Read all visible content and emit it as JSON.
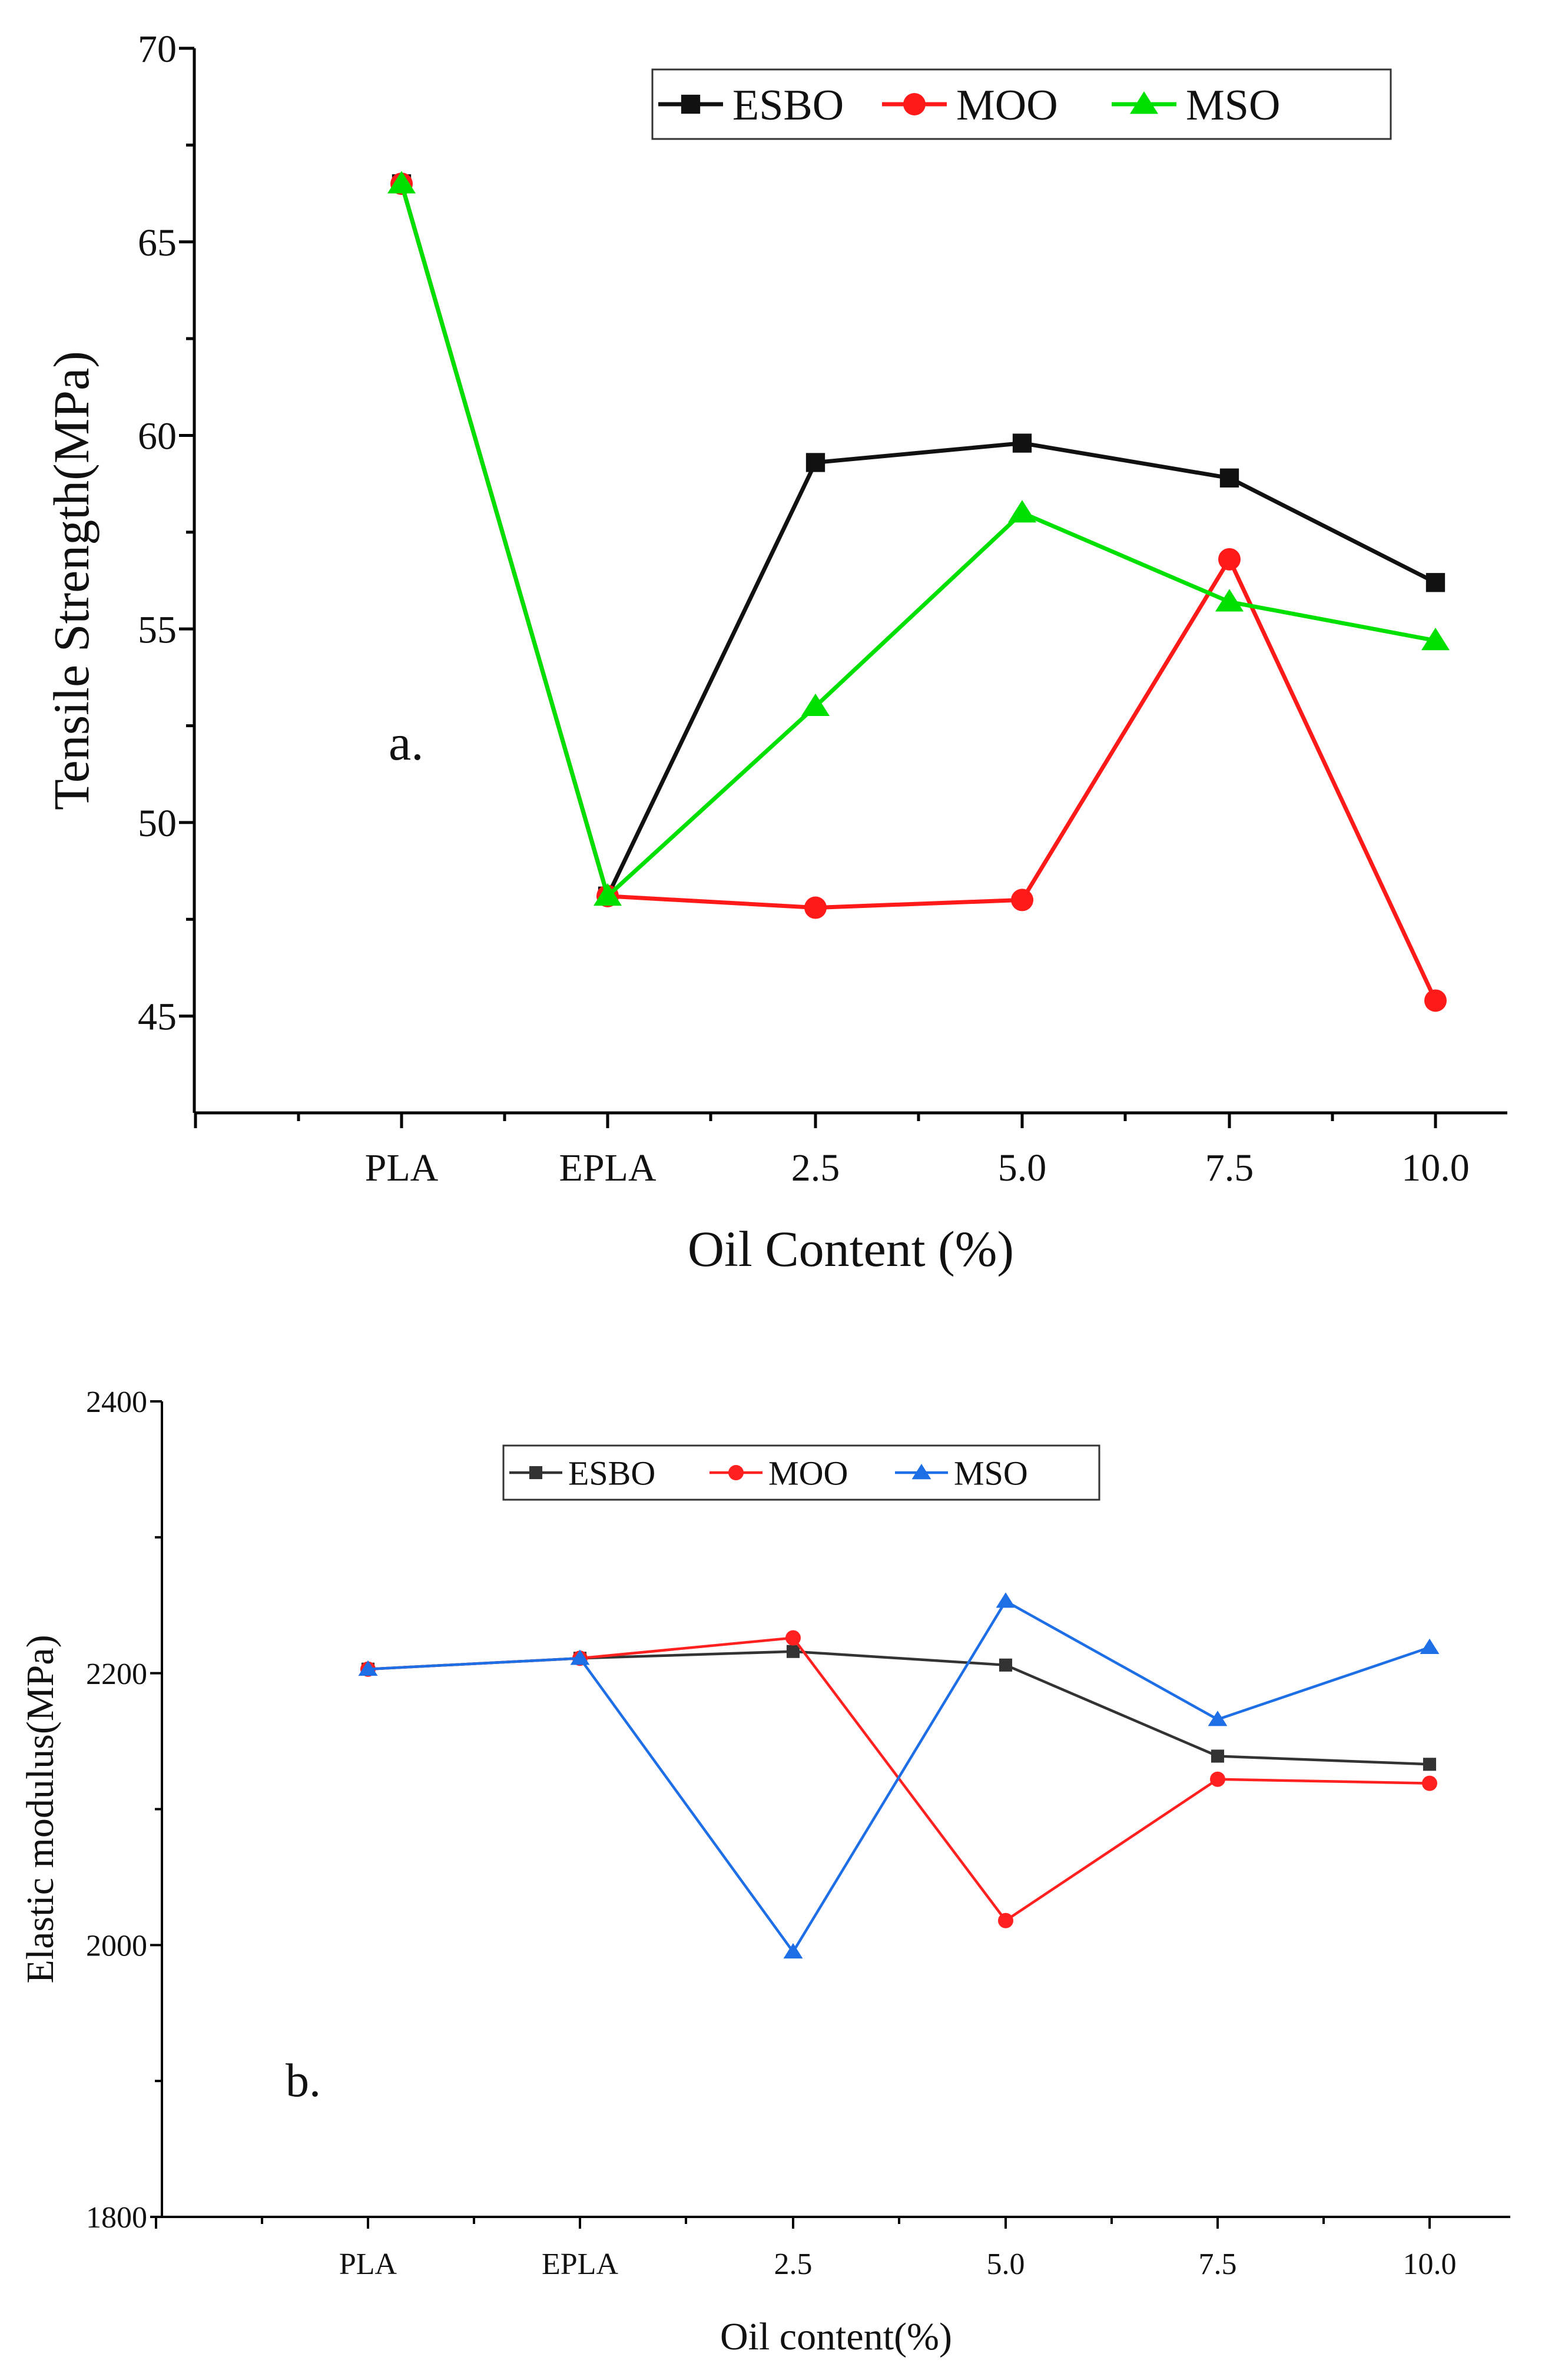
{
  "chart_data": [
    {
      "type": "line",
      "panel_label": "a.",
      "categories": [
        "PLA",
        "EPLA",
        "2.5",
        "5.0",
        "7.5",
        "10.0"
      ],
      "xlabel": "Oil Content (%)",
      "ylabel": "Tensile Strength(MPa)",
      "ylim": [
        42.5,
        70
      ],
      "yticks": [
        45,
        50,
        55,
        60,
        65,
        70
      ],
      "legend_position": "top-right",
      "series": [
        {
          "name": "ESBO",
          "color": "#111111",
          "marker": "square",
          "values": [
            66.5,
            48.1,
            59.3,
            59.8,
            58.9,
            56.2
          ]
        },
        {
          "name": "MOO",
          "color": "#ff1a1a",
          "marker": "circle",
          "values": [
            66.5,
            48.1,
            47.8,
            48.0,
            56.8,
            45.4
          ]
        },
        {
          "name": "MSO",
          "color": "#00e000",
          "marker": "triangle",
          "values": [
            66.5,
            48.1,
            53.0,
            58.0,
            55.7,
            54.7
          ]
        }
      ]
    },
    {
      "type": "line",
      "panel_label": "b.",
      "categories": [
        "PLA",
        "EPLA",
        "2.5",
        "5.0",
        "7.5",
        "10.0"
      ],
      "xlabel": "Oil content(%)",
      "ylabel": "Elastic modulus(MPa)",
      "ylim": [
        1800,
        2400
      ],
      "yticks": [
        1800,
        2000,
        2200,
        2400
      ],
      "legend_position": "top-center",
      "series": [
        {
          "name": "ESBO",
          "color": "#333333",
          "marker": "square",
          "values": [
            2203,
            2211,
            2216,
            2206,
            2139,
            2133
          ]
        },
        {
          "name": "MOO",
          "color": "#ff2020",
          "marker": "circle",
          "values": [
            2203,
            2211,
            2226,
            2018,
            2122,
            2119
          ]
        },
        {
          "name": "MSO",
          "color": "#1e6fe6",
          "marker": "triangle",
          "values": [
            2203,
            2211,
            1995,
            2253,
            2166,
            2219
          ]
        }
      ]
    }
  ]
}
